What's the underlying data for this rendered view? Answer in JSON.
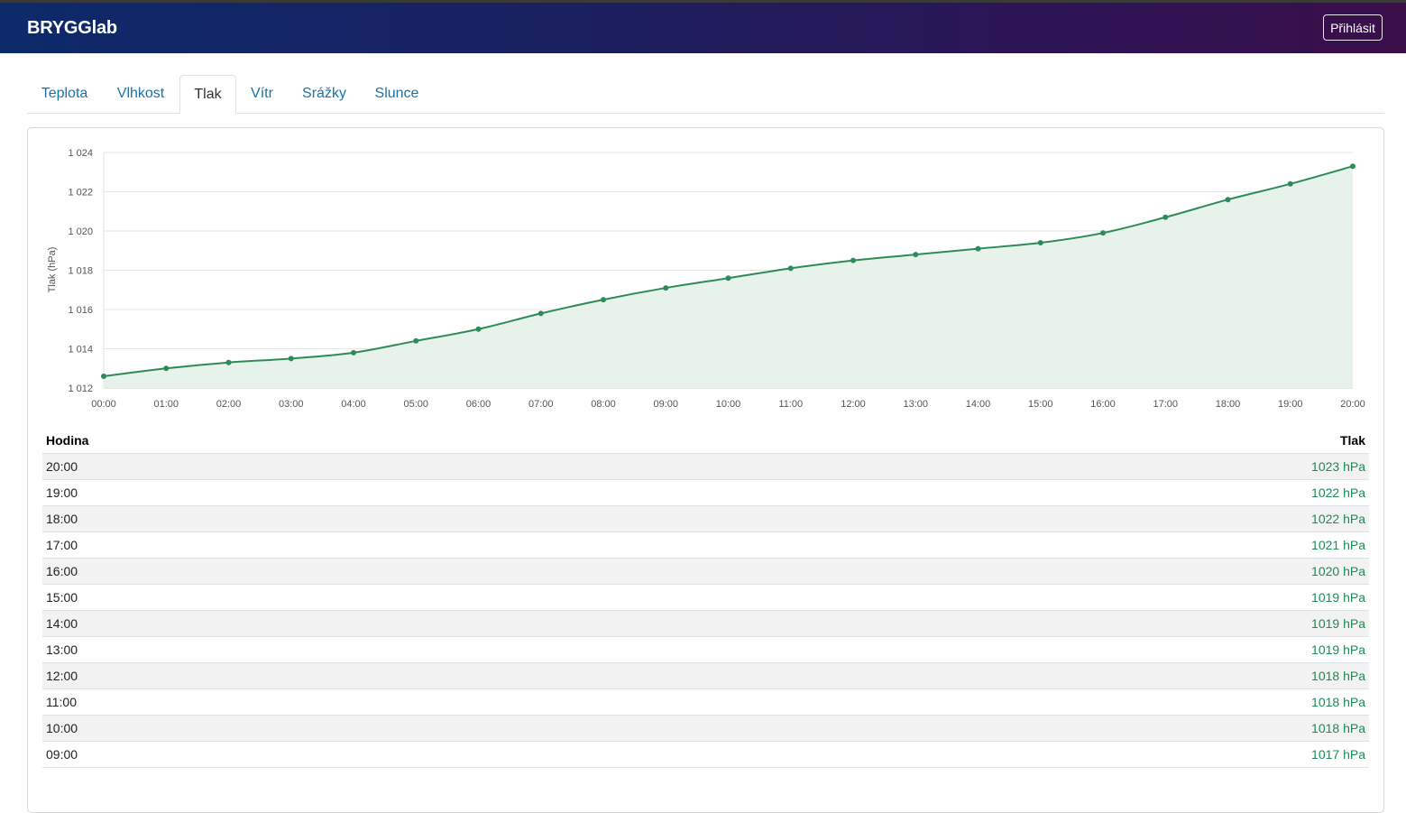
{
  "app": {
    "brand": "BRYGGlab",
    "login_label": "Přihlásit"
  },
  "tabs": [
    {
      "label": "Teplota",
      "active": false
    },
    {
      "label": "Vlhkost",
      "active": false
    },
    {
      "label": "Tlak",
      "active": true
    },
    {
      "label": "Vítr",
      "active": false
    },
    {
      "label": "Srážky",
      "active": false
    },
    {
      "label": "Slunce",
      "active": false
    }
  ],
  "colors": {
    "accent": "#1a73a8",
    "series": "#2e8b57",
    "series_fill": "#e6f2ea"
  },
  "chart_data": {
    "type": "area",
    "title": "",
    "xlabel": "",
    "ylabel": "Tlak (hPa)",
    "categories": [
      "00:00",
      "01:00",
      "02:00",
      "03:00",
      "04:00",
      "05:00",
      "06:00",
      "07:00",
      "08:00",
      "09:00",
      "10:00",
      "11:00",
      "12:00",
      "13:00",
      "14:00",
      "15:00",
      "16:00",
      "17:00",
      "18:00",
      "19:00",
      "20:00"
    ],
    "values": [
      1012.6,
      1013.0,
      1013.3,
      1013.5,
      1013.8,
      1014.4,
      1015.0,
      1015.8,
      1016.5,
      1017.1,
      1017.6,
      1018.1,
      1018.5,
      1018.8,
      1019.1,
      1019.4,
      1019.9,
      1020.7,
      1021.6,
      1022.4,
      1023.3
    ],
    "ylim": [
      1012,
      1024
    ],
    "yticks": [
      "1 012",
      "1 014",
      "1 016",
      "1 018",
      "1 020",
      "1 022",
      "1 024"
    ],
    "grid": true,
    "legend": "none"
  },
  "table": {
    "headers": {
      "hour": "Hodina",
      "pressure": "Tlak"
    },
    "rows": [
      {
        "hour": "20:00",
        "value": "1023 hPa"
      },
      {
        "hour": "19:00",
        "value": "1022 hPa"
      },
      {
        "hour": "18:00",
        "value": "1022 hPa"
      },
      {
        "hour": "17:00",
        "value": "1021 hPa"
      },
      {
        "hour": "16:00",
        "value": "1020 hPa"
      },
      {
        "hour": "15:00",
        "value": "1019 hPa"
      },
      {
        "hour": "14:00",
        "value": "1019 hPa"
      },
      {
        "hour": "13:00",
        "value": "1019 hPa"
      },
      {
        "hour": "12:00",
        "value": "1018 hPa"
      },
      {
        "hour": "11:00",
        "value": "1018 hPa"
      },
      {
        "hour": "10:00",
        "value": "1018 hPa"
      },
      {
        "hour": "09:00",
        "value": "1017 hPa"
      }
    ]
  }
}
